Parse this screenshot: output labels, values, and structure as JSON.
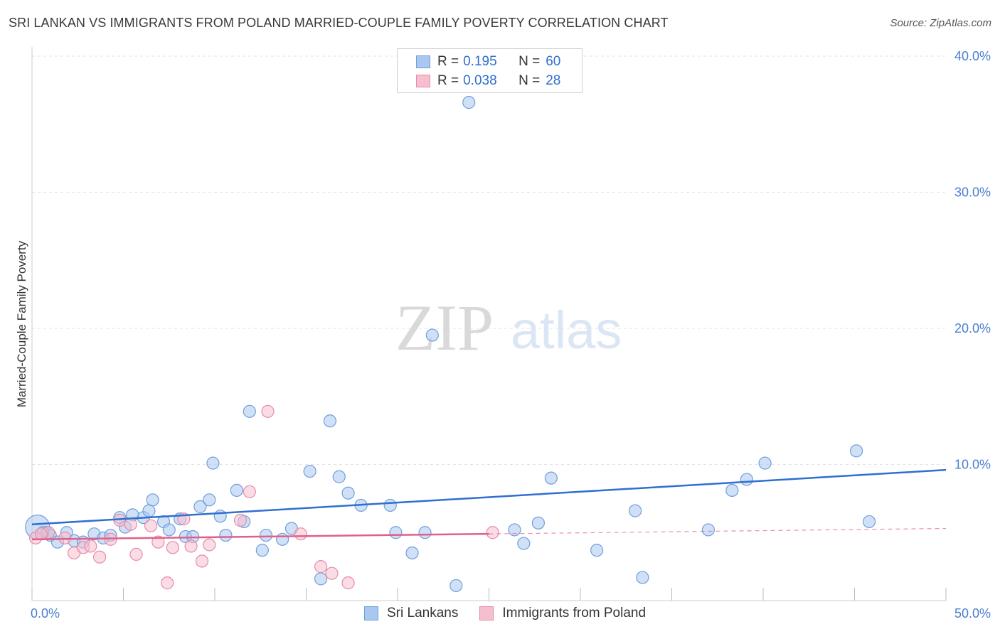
{
  "header": {
    "title": "SRI LANKAN VS IMMIGRANTS FROM POLAND MARRIED-COUPLE FAMILY POVERTY CORRELATION CHART",
    "source": "Source: ZipAtlas.com"
  },
  "watermark": {
    "zip": "ZIP",
    "atlas": "atlas"
  },
  "legend": {
    "series": [
      {
        "r_label": "R =",
        "r_value": "0.195",
        "n_label": "N =",
        "n_value": "60",
        "color": "#a9c7ef",
        "stroke": "#6f9fdc"
      },
      {
        "r_label": "R =",
        "r_value": "0.038",
        "n_label": "N =",
        "n_value": "28",
        "color": "#f6bfd0",
        "stroke": "#e88aa8"
      }
    ]
  },
  "bottom_legend": {
    "items": [
      {
        "label": "Sri Lankans",
        "color": "#a9c7ef",
        "stroke": "#6f9fdc"
      },
      {
        "label": "Immigrants from Poland",
        "color": "#f6bfd0",
        "stroke": "#e88aa8"
      }
    ]
  },
  "chart_data": {
    "type": "scatter",
    "title": "SRI LANKAN VS IMMIGRANTS FROM POLAND MARRIED-COUPLE FAMILY POVERTY CORRELATION CHART",
    "xlabel": "",
    "ylabel": "Married-Couple Family Poverty",
    "xlim": [
      0,
      50
    ],
    "ylim": [
      0,
      40
    ],
    "x_tick_labels": [
      {
        "value": 0,
        "label": "0.0%"
      },
      {
        "value": 50,
        "label": "50.0%"
      }
    ],
    "y_tick_labels": [
      {
        "value": 10,
        "label": "10.0%"
      },
      {
        "value": 20,
        "label": "20.0%"
      },
      {
        "value": 30,
        "label": "30.0%"
      },
      {
        "value": 40,
        "label": "40.0%"
      }
    ],
    "series": [
      {
        "name": "Sri Lankans",
        "color": "#a9c7ef",
        "stroke": "#6f9fdc",
        "trend": {
          "x": [
            0,
            50
          ],
          "y": [
            5.6,
            9.6
          ],
          "color": "#2f6fd0"
        },
        "points": [
          [
            0.3,
            5.4
          ],
          [
            0.8,
            5.0
          ],
          [
            1.0,
            4.8
          ],
          [
            1.4,
            4.3
          ],
          [
            1.9,
            5.0
          ],
          [
            2.3,
            4.4
          ],
          [
            2.8,
            4.3
          ],
          [
            3.4,
            4.9
          ],
          [
            3.9,
            4.6
          ],
          [
            4.3,
            4.8
          ],
          [
            4.8,
            6.1
          ],
          [
            5.1,
            5.4
          ],
          [
            5.5,
            6.3
          ],
          [
            6.1,
            6.1
          ],
          [
            6.4,
            6.6
          ],
          [
            6.6,
            7.4
          ],
          [
            7.2,
            5.8
          ],
          [
            7.5,
            5.2
          ],
          [
            8.1,
            6.0
          ],
          [
            8.4,
            4.7
          ],
          [
            8.8,
            4.7
          ],
          [
            9.2,
            6.9
          ],
          [
            9.7,
            7.4
          ],
          [
            9.9,
            10.1
          ],
          [
            10.3,
            6.2
          ],
          [
            10.6,
            4.8
          ],
          [
            11.2,
            8.1
          ],
          [
            11.6,
            5.8
          ],
          [
            11.9,
            13.9
          ],
          [
            12.6,
            3.7
          ],
          [
            12.8,
            4.8
          ],
          [
            13.7,
            4.5
          ],
          [
            14.2,
            5.3
          ],
          [
            15.2,
            9.5
          ],
          [
            15.8,
            1.6
          ],
          [
            16.3,
            13.2
          ],
          [
            16.8,
            9.1
          ],
          [
            17.3,
            7.9
          ],
          [
            18.0,
            7.0
          ],
          [
            19.6,
            7.0
          ],
          [
            19.9,
            5.0
          ],
          [
            20.8,
            3.5
          ],
          [
            21.5,
            5.0
          ],
          [
            21.9,
            19.5
          ],
          [
            23.2,
            1.1
          ],
          [
            23.9,
            36.6
          ],
          [
            26.4,
            5.2
          ],
          [
            26.9,
            4.2
          ],
          [
            27.7,
            5.7
          ],
          [
            28.4,
            9.0
          ],
          [
            30.9,
            3.7
          ],
          [
            33.0,
            6.6
          ],
          [
            33.4,
            1.7
          ],
          [
            37.0,
            5.2
          ],
          [
            38.3,
            8.1
          ],
          [
            39.1,
            8.9
          ],
          [
            40.1,
            10.1
          ],
          [
            45.1,
            11.0
          ],
          [
            45.8,
            5.8
          ],
          [
            0.6,
            5.0
          ]
        ]
      },
      {
        "name": "Immigrants from Poland",
        "color": "#f6bfd0",
        "stroke": "#e88aa8",
        "trend": {
          "x": [
            0,
            25
          ],
          "y": [
            4.5,
            4.9
          ],
          "dash_x": [
            25,
            50
          ],
          "dash_y": [
            4.9,
            5.3
          ],
          "color": "#e0608a"
        },
        "points": [
          [
            0.2,
            4.6
          ],
          [
            0.9,
            5.0
          ],
          [
            1.8,
            4.6
          ],
          [
            2.3,
            3.5
          ],
          [
            2.8,
            3.9
          ],
          [
            3.2,
            4.0
          ],
          [
            3.7,
            3.2
          ],
          [
            4.3,
            4.5
          ],
          [
            4.8,
            5.9
          ],
          [
            5.4,
            5.6
          ],
          [
            5.7,
            3.4
          ],
          [
            6.5,
            5.5
          ],
          [
            6.9,
            4.3
          ],
          [
            7.4,
            1.3
          ],
          [
            7.7,
            3.9
          ],
          [
            8.3,
            6.0
          ],
          [
            8.7,
            4.0
          ],
          [
            9.3,
            2.9
          ],
          [
            9.7,
            4.1
          ],
          [
            11.4,
            5.9
          ],
          [
            11.9,
            8.0
          ],
          [
            12.9,
            13.9
          ],
          [
            14.7,
            4.9
          ],
          [
            15.8,
            2.5
          ],
          [
            16.4,
            2.0
          ],
          [
            17.3,
            1.3
          ],
          [
            25.2,
            5.0
          ],
          [
            0.5,
            4.9
          ]
        ]
      }
    ]
  }
}
